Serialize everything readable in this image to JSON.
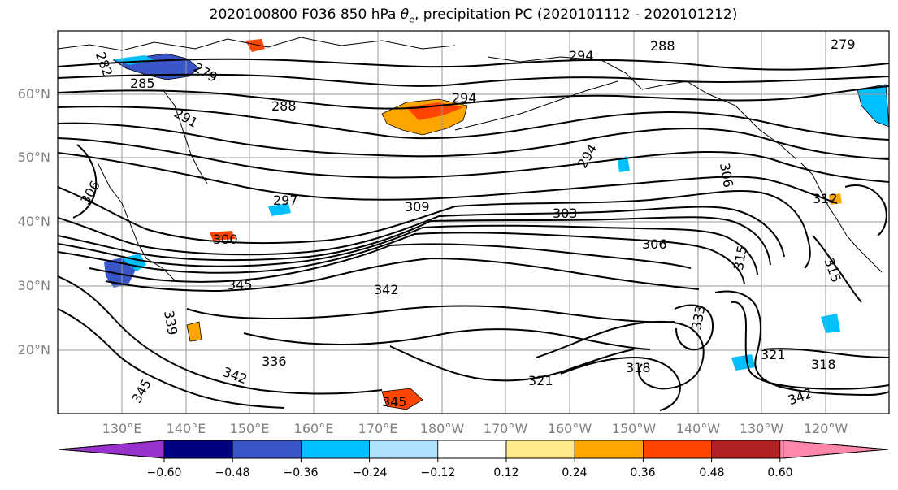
{
  "figure": {
    "title_prefix": "2020100800 F036 850 hPa ",
    "title_symbol": "θ",
    "title_subscript": "e",
    "title_suffix": ", precipitation PC (2020101112 - 2020101212)"
  },
  "map": {
    "lat_labels": [
      "60°N",
      "50°N",
      "40°N",
      "30°N",
      "20°N"
    ],
    "lon_labels": [
      "130°E",
      "140°E",
      "150°E",
      "160°E",
      "170°E",
      "180°W",
      "170°W",
      "160°W",
      "150°W",
      "140°W",
      "130°W",
      "120°W"
    ],
    "contour_labels": [
      "282",
      "279",
      "285",
      "291",
      "288",
      "294",
      "294",
      "294",
      "288",
      "279",
      "297",
      "300",
      "303",
      "306",
      "306",
      "309",
      "306",
      "312",
      "315",
      "315",
      "345",
      "342",
      "336",
      "342",
      "345",
      "345",
      "339",
      "318",
      "318",
      "321",
      "321",
      "342",
      "333"
    ],
    "precip_colors": {
      "purple": "#9932CC",
      "navy": "#000080",
      "blue": "#3A55C8",
      "cyan": "#00BFFF",
      "light_blue": "#ADE1FF",
      "yellow": "#FFE98A",
      "orange": "#FFA500",
      "red_orange": "#FF4500",
      "dark_red": "#B22222",
      "pink": "#FF88AA"
    }
  },
  "colorbar": {
    "ticks": [
      "−0.60",
      "−0.48",
      "−0.36",
      "−0.24",
      "−0.12",
      "0.12",
      "0.24",
      "0.36",
      "0.48",
      "0.60"
    ],
    "colors": [
      "#9932CC",
      "#000080",
      "#3A55C8",
      "#00BFFF",
      "#ADE1FF",
      "#FFFFFF",
      "#FFE98A",
      "#FFA500",
      "#FF4500",
      "#B22222",
      "#FF88AA"
    ]
  }
}
